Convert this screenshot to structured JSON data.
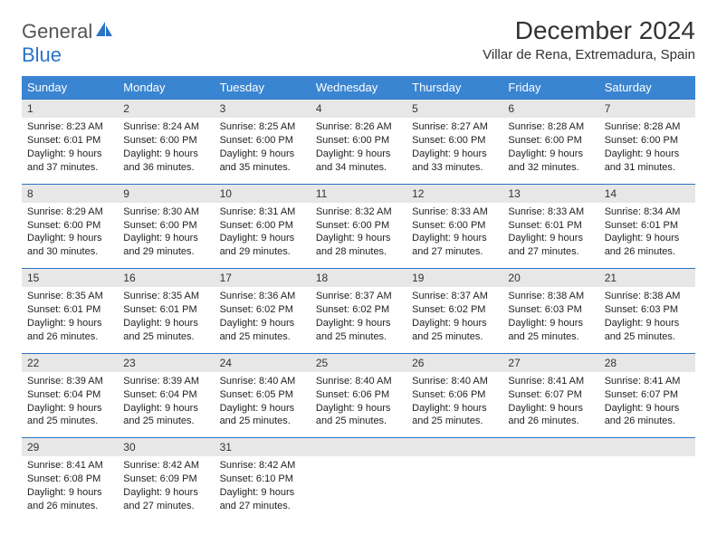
{
  "logo": {
    "main": "General",
    "sub": "Blue"
  },
  "title": "December 2024",
  "location": "Villar de Rena, Extremadura, Spain",
  "colors": {
    "header_bg": "#3a85d1",
    "rule": "#2a74c5",
    "daynum_bg": "#e7e7e7",
    "text": "#222222",
    "logo_gray": "#555555",
    "logo_blue": "#2a74c5"
  },
  "typography": {
    "title_fontsize": 28,
    "location_fontsize": 15,
    "dayhead_fontsize": 13,
    "body_fontsize": 11
  },
  "day_headers": [
    "Sunday",
    "Monday",
    "Tuesday",
    "Wednesday",
    "Thursday",
    "Friday",
    "Saturday"
  ],
  "weeks": [
    [
      {
        "n": "1",
        "sunrise": "Sunrise: 8:23 AM",
        "sunset": "Sunset: 6:01 PM",
        "d1": "Daylight: 9 hours",
        "d2": "and 37 minutes."
      },
      {
        "n": "2",
        "sunrise": "Sunrise: 8:24 AM",
        "sunset": "Sunset: 6:00 PM",
        "d1": "Daylight: 9 hours",
        "d2": "and 36 minutes."
      },
      {
        "n": "3",
        "sunrise": "Sunrise: 8:25 AM",
        "sunset": "Sunset: 6:00 PM",
        "d1": "Daylight: 9 hours",
        "d2": "and 35 minutes."
      },
      {
        "n": "4",
        "sunrise": "Sunrise: 8:26 AM",
        "sunset": "Sunset: 6:00 PM",
        "d1": "Daylight: 9 hours",
        "d2": "and 34 minutes."
      },
      {
        "n": "5",
        "sunrise": "Sunrise: 8:27 AM",
        "sunset": "Sunset: 6:00 PM",
        "d1": "Daylight: 9 hours",
        "d2": "and 33 minutes."
      },
      {
        "n": "6",
        "sunrise": "Sunrise: 8:28 AM",
        "sunset": "Sunset: 6:00 PM",
        "d1": "Daylight: 9 hours",
        "d2": "and 32 minutes."
      },
      {
        "n": "7",
        "sunrise": "Sunrise: 8:28 AM",
        "sunset": "Sunset: 6:00 PM",
        "d1": "Daylight: 9 hours",
        "d2": "and 31 minutes."
      }
    ],
    [
      {
        "n": "8",
        "sunrise": "Sunrise: 8:29 AM",
        "sunset": "Sunset: 6:00 PM",
        "d1": "Daylight: 9 hours",
        "d2": "and 30 minutes."
      },
      {
        "n": "9",
        "sunrise": "Sunrise: 8:30 AM",
        "sunset": "Sunset: 6:00 PM",
        "d1": "Daylight: 9 hours",
        "d2": "and 29 minutes."
      },
      {
        "n": "10",
        "sunrise": "Sunrise: 8:31 AM",
        "sunset": "Sunset: 6:00 PM",
        "d1": "Daylight: 9 hours",
        "d2": "and 29 minutes."
      },
      {
        "n": "11",
        "sunrise": "Sunrise: 8:32 AM",
        "sunset": "Sunset: 6:00 PM",
        "d1": "Daylight: 9 hours",
        "d2": "and 28 minutes."
      },
      {
        "n": "12",
        "sunrise": "Sunrise: 8:33 AM",
        "sunset": "Sunset: 6:00 PM",
        "d1": "Daylight: 9 hours",
        "d2": "and 27 minutes."
      },
      {
        "n": "13",
        "sunrise": "Sunrise: 8:33 AM",
        "sunset": "Sunset: 6:01 PM",
        "d1": "Daylight: 9 hours",
        "d2": "and 27 minutes."
      },
      {
        "n": "14",
        "sunrise": "Sunrise: 8:34 AM",
        "sunset": "Sunset: 6:01 PM",
        "d1": "Daylight: 9 hours",
        "d2": "and 26 minutes."
      }
    ],
    [
      {
        "n": "15",
        "sunrise": "Sunrise: 8:35 AM",
        "sunset": "Sunset: 6:01 PM",
        "d1": "Daylight: 9 hours",
        "d2": "and 26 minutes."
      },
      {
        "n": "16",
        "sunrise": "Sunrise: 8:35 AM",
        "sunset": "Sunset: 6:01 PM",
        "d1": "Daylight: 9 hours",
        "d2": "and 25 minutes."
      },
      {
        "n": "17",
        "sunrise": "Sunrise: 8:36 AM",
        "sunset": "Sunset: 6:02 PM",
        "d1": "Daylight: 9 hours",
        "d2": "and 25 minutes."
      },
      {
        "n": "18",
        "sunrise": "Sunrise: 8:37 AM",
        "sunset": "Sunset: 6:02 PM",
        "d1": "Daylight: 9 hours",
        "d2": "and 25 minutes."
      },
      {
        "n": "19",
        "sunrise": "Sunrise: 8:37 AM",
        "sunset": "Sunset: 6:02 PM",
        "d1": "Daylight: 9 hours",
        "d2": "and 25 minutes."
      },
      {
        "n": "20",
        "sunrise": "Sunrise: 8:38 AM",
        "sunset": "Sunset: 6:03 PM",
        "d1": "Daylight: 9 hours",
        "d2": "and 25 minutes."
      },
      {
        "n": "21",
        "sunrise": "Sunrise: 8:38 AM",
        "sunset": "Sunset: 6:03 PM",
        "d1": "Daylight: 9 hours",
        "d2": "and 25 minutes."
      }
    ],
    [
      {
        "n": "22",
        "sunrise": "Sunrise: 8:39 AM",
        "sunset": "Sunset: 6:04 PM",
        "d1": "Daylight: 9 hours",
        "d2": "and 25 minutes."
      },
      {
        "n": "23",
        "sunrise": "Sunrise: 8:39 AM",
        "sunset": "Sunset: 6:04 PM",
        "d1": "Daylight: 9 hours",
        "d2": "and 25 minutes."
      },
      {
        "n": "24",
        "sunrise": "Sunrise: 8:40 AM",
        "sunset": "Sunset: 6:05 PM",
        "d1": "Daylight: 9 hours",
        "d2": "and 25 minutes."
      },
      {
        "n": "25",
        "sunrise": "Sunrise: 8:40 AM",
        "sunset": "Sunset: 6:06 PM",
        "d1": "Daylight: 9 hours",
        "d2": "and 25 minutes."
      },
      {
        "n": "26",
        "sunrise": "Sunrise: 8:40 AM",
        "sunset": "Sunset: 6:06 PM",
        "d1": "Daylight: 9 hours",
        "d2": "and 25 minutes."
      },
      {
        "n": "27",
        "sunrise": "Sunrise: 8:41 AM",
        "sunset": "Sunset: 6:07 PM",
        "d1": "Daylight: 9 hours",
        "d2": "and 26 minutes."
      },
      {
        "n": "28",
        "sunrise": "Sunrise: 8:41 AM",
        "sunset": "Sunset: 6:07 PM",
        "d1": "Daylight: 9 hours",
        "d2": "and 26 minutes."
      }
    ],
    [
      {
        "n": "29",
        "sunrise": "Sunrise: 8:41 AM",
        "sunset": "Sunset: 6:08 PM",
        "d1": "Daylight: 9 hours",
        "d2": "and 26 minutes."
      },
      {
        "n": "30",
        "sunrise": "Sunrise: 8:42 AM",
        "sunset": "Sunset: 6:09 PM",
        "d1": "Daylight: 9 hours",
        "d2": "and 27 minutes."
      },
      {
        "n": "31",
        "sunrise": "Sunrise: 8:42 AM",
        "sunset": "Sunset: 6:10 PM",
        "d1": "Daylight: 9 hours",
        "d2": "and 27 minutes."
      },
      null,
      null,
      null,
      null
    ]
  ]
}
